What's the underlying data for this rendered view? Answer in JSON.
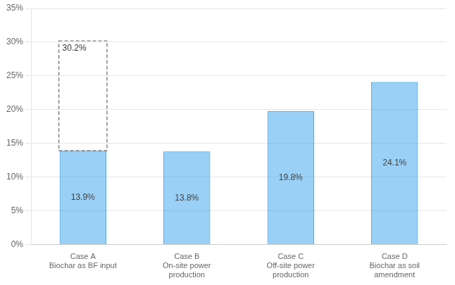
{
  "chart_data": {
    "type": "bar",
    "categories": [
      "Case A\nBiochar as BF input",
      "Case B\nOn-site power\nproduction",
      "Case C\nOff-site power\nproduction",
      "Case D\nBiochar as soil\namendment"
    ],
    "values": [
      13.9,
      13.8,
      19.8,
      24.1
    ],
    "data_labels": true,
    "value_labels": [
      "13.9%",
      "13.8%",
      "19.8%",
      "24.1%"
    ],
    "ylim": [
      0,
      35
    ],
    "yticks": [
      {
        "value": 0,
        "label": "0%"
      },
      {
        "value": 5,
        "label": "5%"
      },
      {
        "value": 10,
        "label": "10%"
      },
      {
        "value": 15,
        "label": "15%"
      },
      {
        "value": 20,
        "label": "20%"
      },
      {
        "value": 25,
        "label": "25%"
      },
      {
        "value": 30,
        "label": "30%"
      },
      {
        "value": 35,
        "label": "35%"
      }
    ],
    "grid": true,
    "annotations": [
      {
        "text": "30.2%",
        "category": "Case A\nBiochar as BF input",
        "value": 30.2
      }
    ]
  }
}
